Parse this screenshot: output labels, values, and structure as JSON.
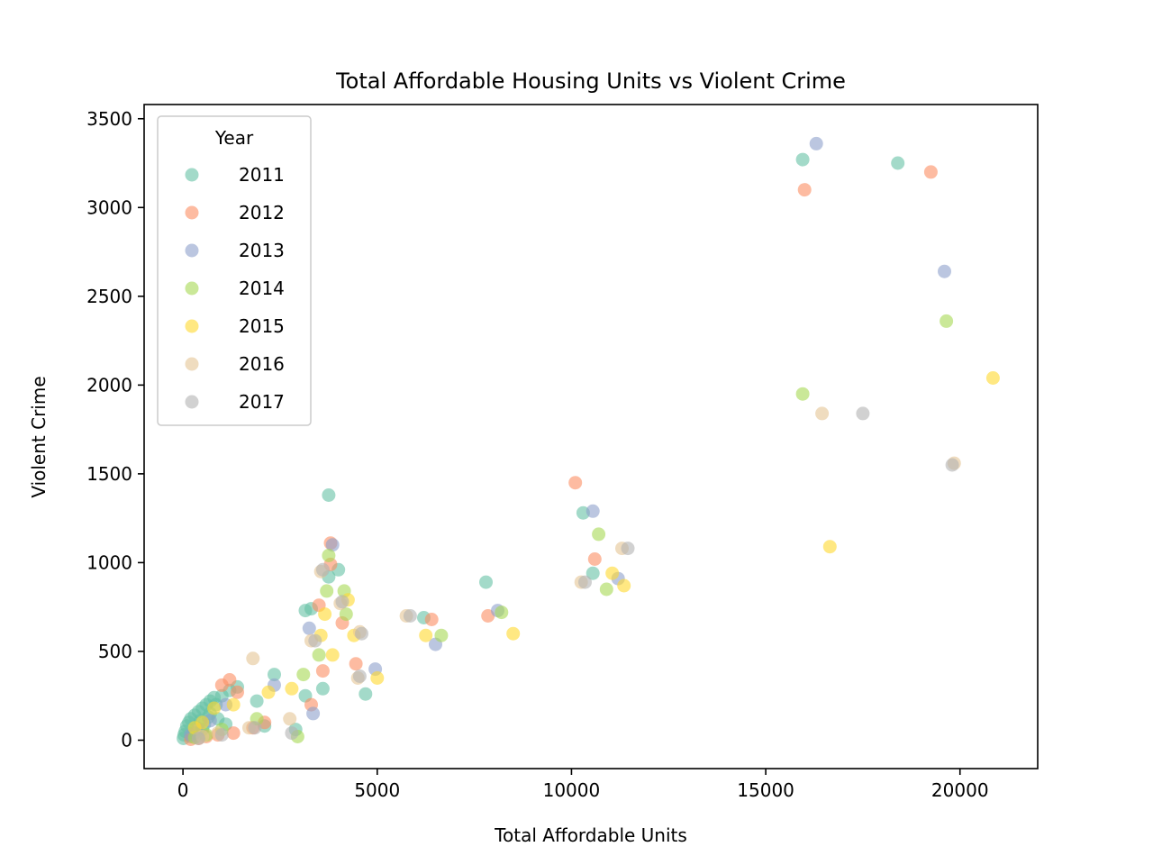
{
  "chart_data": {
    "type": "scatter",
    "title": "Total Affordable Housing Units vs Violent Crime",
    "xlabel": "Total Affordable Units",
    "ylabel": "Violent Crime",
    "xlim": [
      -1000,
      22000
    ],
    "ylim": [
      -160,
      3580
    ],
    "x_ticks": [
      0,
      5000,
      10000,
      15000,
      20000
    ],
    "x_tick_labels": [
      "0",
      "5000",
      "10000",
      "15000",
      "20000"
    ],
    "y_ticks": [
      0,
      500,
      1000,
      1500,
      2000,
      2500,
      3000,
      3500
    ],
    "y_tick_labels": [
      "0",
      "500",
      "1000",
      "1500",
      "2000",
      "2500",
      "3000",
      "3500"
    ],
    "grid": false,
    "legend": {
      "title": "Year",
      "placement": "upper-left"
    },
    "marker_alpha": 0.6,
    "series": [
      {
        "name": "2011",
        "color": "#66c2a5",
        "points": [
          [
            15950,
            3270
          ],
          [
            18400,
            3250
          ],
          [
            10300,
            1280
          ],
          [
            10550,
            940
          ],
          [
            7800,
            890
          ],
          [
            6200,
            690
          ],
          [
            3750,
            1380
          ],
          [
            3750,
            920
          ],
          [
            4000,
            960
          ],
          [
            3300,
            740
          ],
          [
            3150,
            730
          ],
          [
            3600,
            290
          ],
          [
            3150,
            250
          ],
          [
            4700,
            260
          ],
          [
            2350,
            370
          ],
          [
            1400,
            300
          ],
          [
            1200,
            280
          ],
          [
            1000,
            250
          ],
          [
            800,
            240
          ],
          [
            600,
            200
          ],
          [
            500,
            180
          ],
          [
            400,
            160
          ],
          [
            300,
            140
          ],
          [
            200,
            120
          ],
          [
            150,
            100
          ],
          [
            100,
            80
          ],
          [
            60,
            50
          ],
          [
            30,
            30
          ],
          [
            10,
            10
          ],
          [
            700,
            150
          ],
          [
            900,
            120
          ],
          [
            1100,
            90
          ],
          [
            500,
            60
          ],
          [
            300,
            40
          ],
          [
            200,
            20
          ],
          [
            1900,
            220
          ],
          [
            2100,
            80
          ],
          [
            2900,
            60
          ],
          [
            700,
            220
          ],
          [
            850,
            200
          ],
          [
            450,
            110
          ],
          [
            650,
            130
          ],
          [
            550,
            90
          ],
          [
            350,
            70
          ]
        ]
      },
      {
        "name": "2012",
        "color": "#fc8d62",
        "points": [
          [
            19250,
            3200
          ],
          [
            16000,
            3100
          ],
          [
            10100,
            1450
          ],
          [
            10600,
            1020
          ],
          [
            7850,
            700
          ],
          [
            6400,
            680
          ],
          [
            3800,
            1110
          ],
          [
            3800,
            990
          ],
          [
            3500,
            760
          ],
          [
            4100,
            660
          ],
          [
            3600,
            390
          ],
          [
            4450,
            430
          ],
          [
            3300,
            200
          ],
          [
            1200,
            340
          ],
          [
            1000,
            310
          ],
          [
            1400,
            270
          ],
          [
            2100,
            100
          ],
          [
            1800,
            70
          ],
          [
            1300,
            40
          ],
          [
            900,
            30
          ],
          [
            600,
            20
          ],
          [
            400,
            10
          ],
          [
            200,
            5
          ]
        ]
      },
      {
        "name": "2013",
        "color": "#8da0cb",
        "points": [
          [
            16300,
            3360
          ],
          [
            19600,
            2640
          ],
          [
            10550,
            1290
          ],
          [
            11200,
            910
          ],
          [
            8100,
            730
          ],
          [
            6500,
            540
          ],
          [
            3850,
            1100
          ],
          [
            3250,
            630
          ],
          [
            3350,
            150
          ],
          [
            4950,
            400
          ],
          [
            2350,
            310
          ],
          [
            1100,
            200
          ],
          [
            700,
            110
          ],
          [
            400,
            60
          ],
          [
            200,
            30
          ]
        ]
      },
      {
        "name": "2014",
        "color": "#a6d854",
        "points": [
          [
            19650,
            2360
          ],
          [
            15950,
            1950
          ],
          [
            10700,
            1160
          ],
          [
            10900,
            850
          ],
          [
            8200,
            720
          ],
          [
            6650,
            590
          ],
          [
            3750,
            1040
          ],
          [
            3700,
            840
          ],
          [
            4150,
            840
          ],
          [
            4200,
            710
          ],
          [
            3500,
            480
          ],
          [
            3100,
            370
          ],
          [
            2950,
            20
          ],
          [
            1900,
            120
          ],
          [
            1000,
            60
          ],
          [
            600,
            30
          ],
          [
            300,
            15
          ]
        ]
      },
      {
        "name": "2015",
        "color": "#ffd92f",
        "points": [
          [
            20850,
            2040
          ],
          [
            16650,
            1090
          ],
          [
            11050,
            940
          ],
          [
            11350,
            870
          ],
          [
            8500,
            600
          ],
          [
            6250,
            590
          ],
          [
            4250,
            790
          ],
          [
            3850,
            480
          ],
          [
            4400,
            590
          ],
          [
            5000,
            350
          ],
          [
            3550,
            590
          ],
          [
            3650,
            710
          ],
          [
            2800,
            290
          ],
          [
            2200,
            270
          ],
          [
            1300,
            200
          ],
          [
            800,
            180
          ],
          [
            500,
            100
          ],
          [
            300,
            70
          ]
        ]
      },
      {
        "name": "2016",
        "color": "#e5c494",
        "points": [
          [
            16450,
            1840
          ],
          [
            19850,
            1560
          ],
          [
            11300,
            1080
          ],
          [
            10250,
            890
          ],
          [
            5750,
            700
          ],
          [
            3550,
            950
          ],
          [
            4050,
            770
          ],
          [
            4550,
            610
          ],
          [
            3300,
            560
          ],
          [
            4500,
            350
          ],
          [
            1800,
            460
          ],
          [
            2750,
            120
          ],
          [
            1700,
            70
          ],
          [
            900,
            40
          ],
          [
            500,
            20
          ]
        ]
      },
      {
        "name": "2017",
        "color": "#b3b3b3",
        "points": [
          [
            17500,
            1840
          ],
          [
            19800,
            1550
          ],
          [
            11450,
            1080
          ],
          [
            10350,
            890
          ],
          [
            5850,
            700
          ],
          [
            3600,
            960
          ],
          [
            4100,
            780
          ],
          [
            4600,
            600
          ],
          [
            3400,
            560
          ],
          [
            4550,
            360
          ],
          [
            1850,
            70
          ],
          [
            2800,
            40
          ],
          [
            1000,
            30
          ],
          [
            400,
            10
          ]
        ]
      }
    ]
  }
}
